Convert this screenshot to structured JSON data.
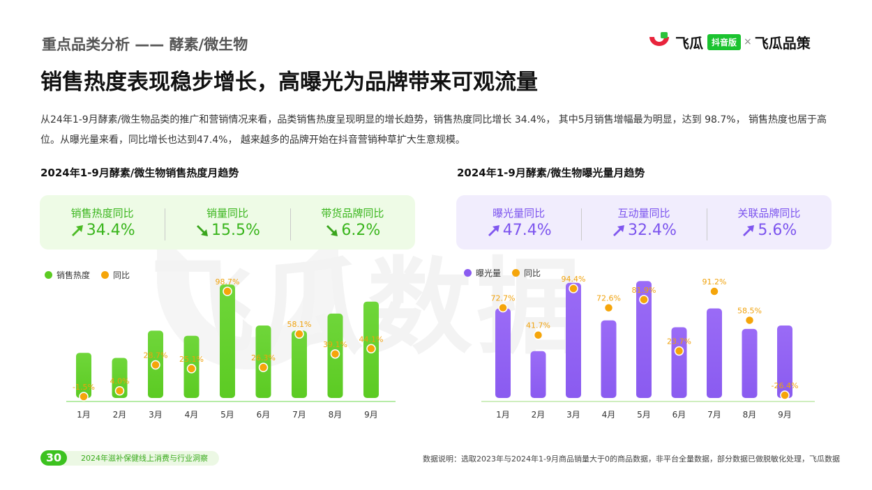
{
  "header": {
    "section_tag": "重点品类分析 —— 酵素/微生物",
    "title": "销售热度表现稳步增长，高曝光为品牌带来可观流量",
    "intro": "从24年1-9月酵素/微生物品类的推广和营销情况来看，品类销售热度呈现明显的增长趋势，销售热度同比增长 34.4%， 其中5月销售增幅最为明显，达到 98.7%， 销售热度也居于高位。从曝光量来看，同比增长也达到47.4%， 越来越多的品牌开始在抖音营销种草扩大生意规模。"
  },
  "logo": {
    "brand_a": "飞瓜",
    "badge": "抖音版",
    "separator": "×",
    "brand_b": "飞瓜品策"
  },
  "watermark": "飞瓜数据",
  "left_panel": {
    "title": "2024年1-9月酵素/微生物销售热度月趋势",
    "kpis": [
      {
        "label": "销售热度同比",
        "value": "34.4%",
        "direction": "up",
        "icon": "trend-up-arrow-icon"
      },
      {
        "label": "销量同比",
        "value": "15.5%",
        "direction": "down",
        "icon": "trend-down-arrow-icon"
      },
      {
        "label": "带货品牌同比",
        "value": "6.2%",
        "direction": "down",
        "icon": "trend-down-arrow-icon"
      }
    ],
    "legend": {
      "bar": "销售热度",
      "dot": "同比"
    }
  },
  "right_panel": {
    "title": "2024年1-9月酵素/微生物曝光量月趋势",
    "kpis": [
      {
        "label": "曝光量同比",
        "value": "47.4%",
        "direction": "up",
        "icon": "trend-up-arrow-icon"
      },
      {
        "label": "互动量同比",
        "value": "32.4%",
        "direction": "up",
        "icon": "trend-up-arrow-icon"
      },
      {
        "label": "关联品牌同比",
        "value": "5.6%",
        "direction": "up",
        "icon": "trend-up-arrow-icon"
      }
    ],
    "legend": {
      "bar": "曝光量",
      "dot": "同比"
    }
  },
  "chart_data": [
    {
      "type": "bar",
      "title": "2024年1-9月酵素/微生物销售热度月趋势",
      "categories": [
        "1月",
        "2月",
        "3月",
        "4月",
        "5月",
        "6月",
        "7月",
        "8月",
        "9月"
      ],
      "series": [
        {
          "name": "销售热度",
          "type": "bar",
          "values": [
            24,
            21,
            37,
            34,
            64,
            40,
            37,
            47,
            54
          ],
          "color": "#5ccb23"
        },
        {
          "name": "同比",
          "type": "scatter",
          "values": [
            -1.5,
            4.0,
            28.7,
            25.1,
            98.7,
            26.3,
            58.1,
            39.1,
            44.1
          ],
          "labels": [
            "-1.5%",
            "4.0%",
            "28.7%",
            "25.1%",
            "98.7%",
            "26.3%",
            "58.1%",
            "39.1%",
            "44.1%"
          ],
          "color": "#f5a50a"
        }
      ],
      "legend_position": "top-left",
      "grid": false
    },
    {
      "type": "bar",
      "title": "2024年1-9月酵素/微生物曝光量月趋势",
      "categories": [
        "1月",
        "2月",
        "3月",
        "4月",
        "5月",
        "6月",
        "7月",
        "8月",
        "9月"
      ],
      "series": [
        {
          "name": "曝光量",
          "type": "bar",
          "values": [
            50,
            25,
            65,
            43,
            66,
            39,
            50,
            38,
            40
          ],
          "color": "#8a5bf0"
        },
        {
          "name": "同比",
          "type": "scatter",
          "values": [
            72.7,
            41.7,
            94.4,
            72.6,
            81.9,
            23.7,
            91.2,
            58.5,
            -26.4
          ],
          "labels": [
            "72.7%",
            "41.7%",
            "94.4%",
            "72.6%",
            "81.9%",
            "23.7%",
            "91.2%",
            "58.5%",
            "-26.4%"
          ],
          "color": "#f5a50a"
        }
      ],
      "legend_position": "top-left",
      "grid": false
    }
  ],
  "footer": {
    "page_number": "30",
    "report_name": "2024年滋补保健线上消费与行业洞察",
    "note": "数据说明：选取2023年与2024年1-9月商品销量大于0的商品数据，非平台全量数据，部分数据已做脱敏化处理，飞瓜数据"
  }
}
